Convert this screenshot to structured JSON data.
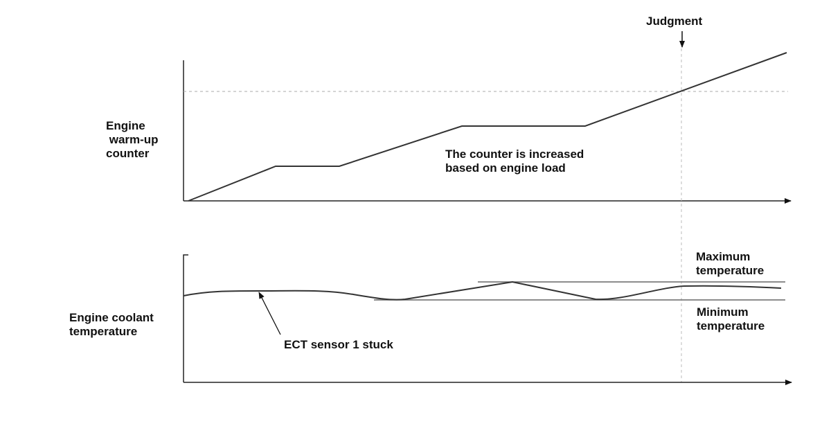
{
  "top_chart": {
    "ylabel": "Engine\n warm-up\ncounter",
    "annotation": "The counter is increased\nbased on engine load"
  },
  "judgment_label": "Judgment",
  "bottom_chart": {
    "ylabel": "Engine coolant\ntemperature",
    "max_label": "Maximum\ntemperature",
    "min_label": "Minimum\ntemperature",
    "stuck_label": "ECT sensor 1 stuck"
  },
  "colors": {
    "line": "#333333",
    "dashed": "#aaaaaa",
    "limit": "#666666"
  }
}
